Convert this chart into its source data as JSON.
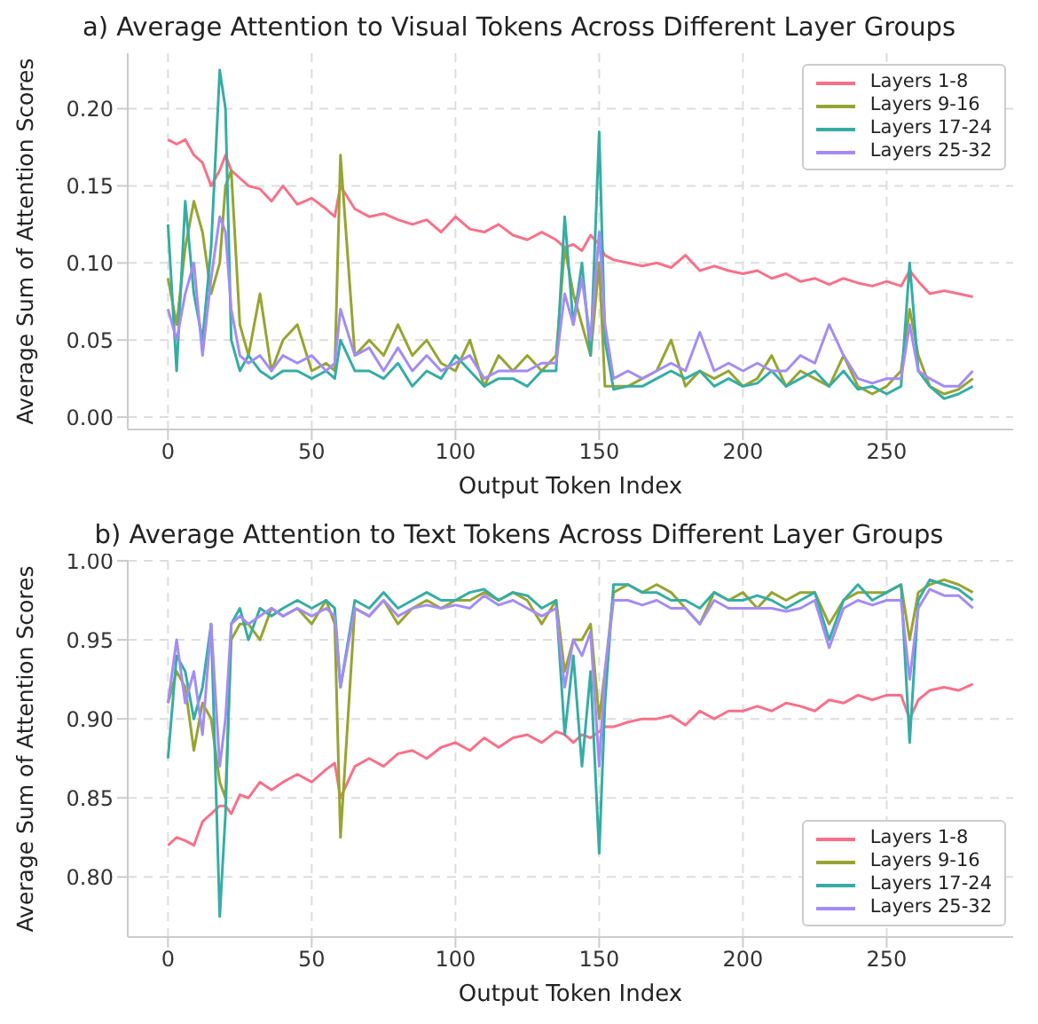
{
  "chart_data": [
    {
      "type": "line",
      "title": "a) Average Attention to Visual Tokens Across Different Layer Groups",
      "xlabel": "Output Token Index",
      "ylabel": "Average Sum of Attention Scores",
      "grid": true,
      "legend": "top right",
      "marker": "none",
      "line_style": "solid",
      "x": [
        0,
        3,
        6,
        9,
        12,
        15,
        18,
        20,
        22,
        25,
        28,
        32,
        36,
        40,
        45,
        50,
        55,
        58,
        60,
        65,
        70,
        75,
        80,
        85,
        90,
        95,
        100,
        105,
        110,
        115,
        120,
        125,
        130,
        135,
        138,
        141,
        144,
        147,
        150,
        152,
        155,
        160,
        165,
        170,
        175,
        180,
        185,
        190,
        195,
        200,
        205,
        210,
        215,
        220,
        225,
        230,
        235,
        240,
        245,
        250,
        255,
        258,
        261,
        265,
        270,
        275,
        280
      ],
      "xlim": [
        -14,
        294
      ],
      "xticks": [
        0,
        50,
        100,
        150,
        200,
        250
      ],
      "ylim": [
        -0.008,
        0.236
      ],
      "yticks": [
        {
          "value": 0,
          "label": "0.00"
        },
        {
          "value": 0.05,
          "label": "0.05"
        },
        {
          "value": 0.1,
          "label": "0.10"
        },
        {
          "value": 0.15,
          "label": "0.15"
        },
        {
          "value": 0.2,
          "label": "0.20"
        }
      ],
      "series": [
        {
          "name": "Layers 1-8",
          "color": "#f77189",
          "values": [
            0.18,
            0.177,
            0.18,
            0.17,
            0.165,
            0.15,
            0.16,
            0.17,
            0.16,
            0.155,
            0.15,
            0.148,
            0.14,
            0.15,
            0.138,
            0.142,
            0.135,
            0.13,
            0.15,
            0.135,
            0.13,
            0.132,
            0.128,
            0.125,
            0.128,
            0.12,
            0.13,
            0.122,
            0.12,
            0.125,
            0.118,
            0.115,
            0.12,
            0.115,
            0.11,
            0.112,
            0.108,
            0.118,
            0.112,
            0.105,
            0.102,
            0.1,
            0.098,
            0.1,
            0.097,
            0.105,
            0.095,
            0.098,
            0.095,
            0.093,
            0.095,
            0.09,
            0.093,
            0.088,
            0.09,
            0.086,
            0.09,
            0.087,
            0.085,
            0.088,
            0.085,
            0.095,
            0.088,
            0.08,
            0.082,
            0.08,
            0.078
          ]
        },
        {
          "name": "Layers 9-16",
          "color": "#97a431",
          "values": [
            0.09,
            0.06,
            0.11,
            0.14,
            0.12,
            0.08,
            0.1,
            0.15,
            0.16,
            0.06,
            0.04,
            0.08,
            0.03,
            0.05,
            0.06,
            0.03,
            0.035,
            0.03,
            0.17,
            0.04,
            0.05,
            0.04,
            0.06,
            0.04,
            0.05,
            0.035,
            0.03,
            0.05,
            0.02,
            0.04,
            0.03,
            0.04,
            0.03,
            0.04,
            0.11,
            0.08,
            0.06,
            0.04,
            0.1,
            0.02,
            0.02,
            0.02,
            0.025,
            0.03,
            0.05,
            0.02,
            0.03,
            0.025,
            0.03,
            0.02,
            0.025,
            0.04,
            0.02,
            0.03,
            0.025,
            0.02,
            0.04,
            0.02,
            0.015,
            0.02,
            0.03,
            0.07,
            0.04,
            0.02,
            0.015,
            0.018,
            0.025
          ]
        },
        {
          "name": "Layers 17-24",
          "color": "#36ada4",
          "values": [
            0.125,
            0.03,
            0.14,
            0.08,
            0.05,
            0.11,
            0.225,
            0.2,
            0.05,
            0.03,
            0.04,
            0.03,
            0.025,
            0.03,
            0.03,
            0.025,
            0.03,
            0.025,
            0.05,
            0.03,
            0.03,
            0.025,
            0.035,
            0.02,
            0.03,
            0.025,
            0.04,
            0.03,
            0.02,
            0.025,
            0.025,
            0.02,
            0.03,
            0.03,
            0.13,
            0.06,
            0.1,
            0.04,
            0.185,
            0.05,
            0.018,
            0.02,
            0.02,
            0.025,
            0.03,
            0.025,
            0.03,
            0.02,
            0.025,
            0.02,
            0.022,
            0.03,
            0.02,
            0.025,
            0.03,
            0.02,
            0.03,
            0.018,
            0.02,
            0.015,
            0.02,
            0.1,
            0.03,
            0.02,
            0.012,
            0.015,
            0.02
          ]
        },
        {
          "name": "Layers 25-32",
          "color": "#a48cf4",
          "values": [
            0.07,
            0.05,
            0.08,
            0.1,
            0.04,
            0.09,
            0.13,
            0.12,
            0.07,
            0.04,
            0.035,
            0.04,
            0.03,
            0.04,
            0.035,
            0.04,
            0.03,
            0.035,
            0.07,
            0.04,
            0.045,
            0.03,
            0.045,
            0.03,
            0.04,
            0.03,
            0.035,
            0.04,
            0.025,
            0.03,
            0.03,
            0.03,
            0.035,
            0.035,
            0.08,
            0.06,
            0.09,
            0.05,
            0.12,
            0.06,
            0.025,
            0.03,
            0.025,
            0.03,
            0.035,
            0.03,
            0.055,
            0.03,
            0.035,
            0.03,
            0.035,
            0.03,
            0.03,
            0.04,
            0.035,
            0.06,
            0.04,
            0.025,
            0.022,
            0.025,
            0.025,
            0.06,
            0.03,
            0.025,
            0.02,
            0.02,
            0.03
          ]
        }
      ]
    },
    {
      "type": "line",
      "title": "b) Average Attention to Text Tokens Across Different Layer Groups",
      "xlabel": "Output Token Index",
      "ylabel": "Average Sum of Attention Scores",
      "grid": true,
      "legend": "bottom right",
      "marker": "none",
      "line_style": "solid",
      "x": [
        0,
        3,
        6,
        9,
        12,
        15,
        18,
        20,
        22,
        25,
        28,
        32,
        36,
        40,
        45,
        50,
        55,
        58,
        60,
        65,
        70,
        75,
        80,
        85,
        90,
        95,
        100,
        105,
        110,
        115,
        120,
        125,
        130,
        135,
        138,
        141,
        144,
        147,
        150,
        152,
        155,
        160,
        165,
        170,
        175,
        180,
        185,
        190,
        195,
        200,
        205,
        210,
        215,
        220,
        225,
        230,
        235,
        240,
        245,
        250,
        255,
        258,
        261,
        265,
        270,
        275,
        280
      ],
      "xlim": [
        -14,
        294
      ],
      "xticks": [
        0,
        50,
        100,
        150,
        200,
        250
      ],
      "ylim": [
        0.762,
        1.0
      ],
      "yticks": [
        {
          "value": 0.8,
          "label": "0.80"
        },
        {
          "value": 0.85,
          "label": "0.85"
        },
        {
          "value": 0.9,
          "label": "0.90"
        },
        {
          "value": 0.95,
          "label": "0.95"
        },
        {
          "value": 1,
          "label": "1.00"
        }
      ],
      "series": [
        {
          "name": "Layers 1-8",
          "color": "#f77189",
          "values": [
            0.82,
            0.825,
            0.823,
            0.82,
            0.835,
            0.84,
            0.845,
            0.845,
            0.84,
            0.852,
            0.85,
            0.86,
            0.855,
            0.86,
            0.865,
            0.86,
            0.868,
            0.872,
            0.85,
            0.87,
            0.875,
            0.87,
            0.878,
            0.88,
            0.875,
            0.882,
            0.885,
            0.88,
            0.888,
            0.882,
            0.888,
            0.89,
            0.885,
            0.892,
            0.89,
            0.885,
            0.89,
            0.888,
            0.892,
            0.895,
            0.895,
            0.898,
            0.9,
            0.9,
            0.902,
            0.896,
            0.905,
            0.9,
            0.905,
            0.905,
            0.908,
            0.905,
            0.91,
            0.908,
            0.905,
            0.912,
            0.91,
            0.915,
            0.912,
            0.915,
            0.915,
            0.9,
            0.912,
            0.918,
            0.92,
            0.918,
            0.922
          ]
        },
        {
          "name": "Layers 9-16",
          "color": "#97a431",
          "values": [
            0.91,
            0.93,
            0.92,
            0.88,
            0.91,
            0.9,
            0.86,
            0.85,
            0.95,
            0.96,
            0.96,
            0.95,
            0.97,
            0.965,
            0.97,
            0.96,
            0.975,
            0.96,
            0.825,
            0.97,
            0.965,
            0.975,
            0.96,
            0.97,
            0.975,
            0.97,
            0.975,
            0.975,
            0.98,
            0.975,
            0.98,
            0.975,
            0.96,
            0.975,
            0.93,
            0.95,
            0.95,
            0.96,
            0.9,
            0.93,
            0.98,
            0.985,
            0.98,
            0.985,
            0.98,
            0.97,
            0.96,
            0.98,
            0.975,
            0.98,
            0.97,
            0.98,
            0.975,
            0.98,
            0.98,
            0.96,
            0.975,
            0.98,
            0.98,
            0.98,
            0.985,
            0.95,
            0.98,
            0.985,
            0.988,
            0.985,
            0.98
          ]
        },
        {
          "name": "Layers 17-24",
          "color": "#36ada4",
          "values": [
            0.875,
            0.94,
            0.93,
            0.9,
            0.92,
            0.96,
            0.775,
            0.84,
            0.96,
            0.97,
            0.95,
            0.97,
            0.965,
            0.97,
            0.975,
            0.97,
            0.975,
            0.97,
            0.92,
            0.975,
            0.97,
            0.98,
            0.97,
            0.975,
            0.98,
            0.975,
            0.975,
            0.98,
            0.982,
            0.975,
            0.98,
            0.978,
            0.97,
            0.975,
            0.89,
            0.94,
            0.87,
            0.93,
            0.815,
            0.91,
            0.985,
            0.985,
            0.98,
            0.98,
            0.975,
            0.975,
            0.97,
            0.98,
            0.975,
            0.975,
            0.978,
            0.975,
            0.97,
            0.975,
            0.98,
            0.95,
            0.975,
            0.985,
            0.975,
            0.98,
            0.985,
            0.885,
            0.975,
            0.988,
            0.985,
            0.982,
            0.975
          ]
        },
        {
          "name": "Layers 25-32",
          "color": "#a48cf4",
          "values": [
            0.91,
            0.95,
            0.91,
            0.93,
            0.89,
            0.96,
            0.87,
            0.9,
            0.96,
            0.965,
            0.96,
            0.965,
            0.97,
            0.965,
            0.97,
            0.965,
            0.97,
            0.965,
            0.92,
            0.97,
            0.965,
            0.975,
            0.965,
            0.97,
            0.972,
            0.97,
            0.972,
            0.97,
            0.978,
            0.972,
            0.975,
            0.97,
            0.965,
            0.97,
            0.92,
            0.95,
            0.94,
            0.955,
            0.87,
            0.93,
            0.975,
            0.975,
            0.972,
            0.975,
            0.97,
            0.97,
            0.96,
            0.975,
            0.97,
            0.97,
            0.97,
            0.97,
            0.968,
            0.97,
            0.975,
            0.945,
            0.97,
            0.975,
            0.972,
            0.975,
            0.975,
            0.925,
            0.97,
            0.982,
            0.978,
            0.978,
            0.97
          ]
        }
      ]
    }
  ]
}
